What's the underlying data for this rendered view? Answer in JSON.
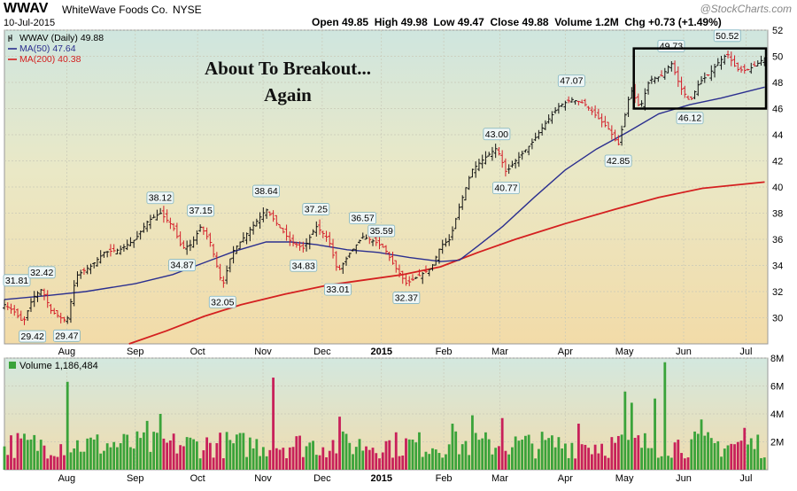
{
  "header": {
    "ticker": "WWAV",
    "company": "WhiteWave Foods Co.",
    "exchange": "NYSE",
    "date": "10-Jul-2015",
    "open_label": "Open",
    "open": "49.85",
    "high_label": "High",
    "high": "49.98",
    "low_label": "Low",
    "low": "49.47",
    "close_label": "Close",
    "close": "49.88",
    "volume_label": "Volume",
    "volume": "1.2M",
    "chg_label": "Chg",
    "chg": "+0.73 (+1.49%)",
    "brand": "@StockCharts.com"
  },
  "annotation": {
    "line1": "About To Breakout...",
    "line2": "Again"
  },
  "chart_data": [
    {
      "type": "line",
      "panel": "price",
      "legend": [
        {
          "label": "WWAV (Daily) 49.88",
          "color": "#000000"
        },
        {
          "label": "MA(50) 47.64",
          "color": "#2b2f8f"
        },
        {
          "label": "MA(200) 40.38",
          "color": "#d42020"
        }
      ],
      "ylim": [
        28,
        52
      ],
      "y_ticks": [
        30,
        32,
        34,
        36,
        38,
        40,
        42,
        44,
        46,
        48,
        50,
        52
      ],
      "x_ticks": [
        "Aug",
        "Sep",
        "Oct",
        "Nov",
        "Dec",
        "2015",
        "Feb",
        "Mar",
        "Apr",
        "May",
        "Jun",
        "Jul"
      ],
      "x_tick_positions": [
        1.0,
        2.1,
        3.1,
        4.15,
        5.1,
        6.05,
        7.05,
        7.95,
        9.0,
        9.95,
        10.9,
        11.9
      ],
      "x_range": [
        0,
        12.25
      ],
      "price_path": [
        [
          0.0,
          31.0
        ],
        [
          0.15,
          30.5
        ],
        [
          0.3,
          29.6
        ],
        [
          0.45,
          31.5
        ],
        [
          0.6,
          32.2
        ],
        [
          0.75,
          30.5
        ],
        [
          0.9,
          30.0
        ],
        [
          1.0,
          29.7
        ],
        [
          1.15,
          33.2
        ],
        [
          1.4,
          34.0
        ],
        [
          1.6,
          35.0
        ],
        [
          1.85,
          35.2
        ],
        [
          2.1,
          36.0
        ],
        [
          2.3,
          37.4
        ],
        [
          2.5,
          38.0
        ],
        [
          2.7,
          37.0
        ],
        [
          2.85,
          35.3
        ],
        [
          3.0,
          35.6
        ],
        [
          3.15,
          37.0
        ],
        [
          3.3,
          35.8
        ],
        [
          3.5,
          32.4
        ],
        [
          3.65,
          35.0
        ],
        [
          3.85,
          36.2
        ],
        [
          4.05,
          37.4
        ],
        [
          4.2,
          38.3
        ],
        [
          4.4,
          37.0
        ],
        [
          4.6,
          35.8
        ],
        [
          4.8,
          35.3
        ],
        [
          5.0,
          37.0
        ],
        [
          5.2,
          36.0
        ],
        [
          5.35,
          33.5
        ],
        [
          5.55,
          35.0
        ],
        [
          5.75,
          36.2
        ],
        [
          5.95,
          35.8
        ],
        [
          6.1,
          35.3
        ],
        [
          6.25,
          34.0
        ],
        [
          6.45,
          32.6
        ],
        [
          6.65,
          33.2
        ],
        [
          6.85,
          33.8
        ],
        [
          7.0,
          35.5
        ],
        [
          7.15,
          36.0
        ],
        [
          7.3,
          38.5
        ],
        [
          7.5,
          41.3
        ],
        [
          7.7,
          42.2
        ],
        [
          7.9,
          43.0
        ],
        [
          8.05,
          41.1
        ],
        [
          8.2,
          42.0
        ],
        [
          8.45,
          43.3
        ],
        [
          8.7,
          45.0
        ],
        [
          8.9,
          46.2
        ],
        [
          9.1,
          46.7
        ],
        [
          9.3,
          46.4
        ],
        [
          9.5,
          45.4
        ],
        [
          9.7,
          44.4
        ],
        [
          9.85,
          43.2
        ],
        [
          9.95,
          45.3
        ],
        [
          10.05,
          47.5
        ],
        [
          10.2,
          46.0
        ],
        [
          10.35,
          48.2
        ],
        [
          10.55,
          48.5
        ],
        [
          10.7,
          49.5
        ],
        [
          10.85,
          47.6
        ],
        [
          11.0,
          46.5
        ],
        [
          11.15,
          48.0
        ],
        [
          11.3,
          48.6
        ],
        [
          11.45,
          49.5
        ],
        [
          11.6,
          50.2
        ],
        [
          11.75,
          49.0
        ],
        [
          11.9,
          48.9
        ],
        [
          12.05,
          49.3
        ],
        [
          12.2,
          49.9
        ]
      ],
      "ma50": [
        [
          0.0,
          31.4
        ],
        [
          0.7,
          31.7
        ],
        [
          1.3,
          32.0
        ],
        [
          2.1,
          32.6
        ],
        [
          2.7,
          33.3
        ],
        [
          3.2,
          34.2
        ],
        [
          3.7,
          35.1
        ],
        [
          4.2,
          35.8
        ],
        [
          4.6,
          35.8
        ],
        [
          5.0,
          35.6
        ],
        [
          5.5,
          35.2
        ],
        [
          6.0,
          35.0
        ],
        [
          6.5,
          34.6
        ],
        [
          7.0,
          34.3
        ],
        [
          7.3,
          34.4
        ],
        [
          7.6,
          35.5
        ],
        [
          8.0,
          37.0
        ],
        [
          8.5,
          39.2
        ],
        [
          9.0,
          41.3
        ],
        [
          9.5,
          42.9
        ],
        [
          10.0,
          44.2
        ],
        [
          10.5,
          45.6
        ],
        [
          11.0,
          46.3
        ],
        [
          11.5,
          46.8
        ],
        [
          12.2,
          47.64
        ]
      ],
      "ma200": [
        [
          2.0,
          27.8
        ],
        [
          2.6,
          29.0
        ],
        [
          3.2,
          30.1
        ],
        [
          3.8,
          31.0
        ],
        [
          4.5,
          31.8
        ],
        [
          5.2,
          32.5
        ],
        [
          5.8,
          32.9
        ],
        [
          6.4,
          33.3
        ],
        [
          7.0,
          33.9
        ],
        [
          7.6,
          35.0
        ],
        [
          8.2,
          36.0
        ],
        [
          9.0,
          37.2
        ],
        [
          9.8,
          38.3
        ],
        [
          10.5,
          39.2
        ],
        [
          11.2,
          39.9
        ],
        [
          12.2,
          40.38
        ]
      ],
      "labels": [
        {
          "t": 0.0,
          "v": 31.81,
          "text": "31.81",
          "pos": "above"
        },
        {
          "t": 0.6,
          "v": 32.42,
          "text": "32.42",
          "pos": "above"
        },
        {
          "t": 0.45,
          "v": 29.42,
          "text": "29.42",
          "pos": "below"
        },
        {
          "t": 1.0,
          "v": 29.47,
          "text": "29.47",
          "pos": "below"
        },
        {
          "t": 2.5,
          "v": 38.12,
          "text": "38.12",
          "pos": "above"
        },
        {
          "t": 2.85,
          "v": 34.87,
          "text": "34.87",
          "pos": "below"
        },
        {
          "t": 3.15,
          "v": 37.15,
          "text": "37.15",
          "pos": "above"
        },
        {
          "t": 3.5,
          "v": 32.05,
          "text": "32.05",
          "pos": "below"
        },
        {
          "t": 4.2,
          "v": 38.64,
          "text": "38.64",
          "pos": "above"
        },
        {
          "t": 4.8,
          "v": 34.83,
          "text": "34.83",
          "pos": "below"
        },
        {
          "t": 5.0,
          "v": 37.25,
          "text": "37.25",
          "pos": "above"
        },
        {
          "t": 5.35,
          "v": 33.01,
          "text": "33.01",
          "pos": "below"
        },
        {
          "t": 5.75,
          "v": 36.57,
          "text": "36.57",
          "pos": "above"
        },
        {
          "t": 6.05,
          "v": 35.59,
          "text": "35.59",
          "pos": "above"
        },
        {
          "t": 6.45,
          "v": 32.37,
          "text": "32.37",
          "pos": "below"
        },
        {
          "t": 7.9,
          "v": 43.0,
          "text": "43.00",
          "pos": "above"
        },
        {
          "t": 8.05,
          "v": 40.77,
          "text": "40.77",
          "pos": "below"
        },
        {
          "t": 9.1,
          "v": 47.07,
          "text": "47.07",
          "pos": "above"
        },
        {
          "t": 9.85,
          "v": 42.85,
          "text": "42.85",
          "pos": "below"
        },
        {
          "t": 10.7,
          "v": 49.73,
          "text": "49.73",
          "pos": "above"
        },
        {
          "t": 11.0,
          "v": 46.12,
          "text": "46.12",
          "pos": "below"
        },
        {
          "t": 11.6,
          "v": 50.52,
          "text": "50.52",
          "pos": "above"
        }
      ],
      "box": {
        "t0": 10.1,
        "t1": 12.25,
        "v0": 46.0,
        "v1": 50.6
      }
    },
    {
      "type": "bar",
      "panel": "volume",
      "legend": [
        {
          "label": "Volume 1,186,484",
          "color": "#000000"
        }
      ],
      "ylim": [
        0,
        8
      ],
      "y_ticks": [
        2,
        4,
        6,
        8
      ],
      "y_tick_labels": [
        "2M",
        "4M",
        "6M",
        "8M"
      ],
      "unit": "M",
      "spikes": [
        {
          "t": 1.0,
          "v": 6.3
        },
        {
          "t": 2.3,
          "v": 3.5
        },
        {
          "t": 2.5,
          "v": 4.0
        },
        {
          "t": 4.3,
          "v": 6.6
        },
        {
          "t": 5.4,
          "v": 3.8
        },
        {
          "t": 7.2,
          "v": 3.3
        },
        {
          "t": 7.5,
          "v": 3.9
        },
        {
          "t": 8.0,
          "v": 3.7
        },
        {
          "t": 9.2,
          "v": 3.3
        },
        {
          "t": 9.95,
          "v": 5.6
        },
        {
          "t": 10.05,
          "v": 4.8
        },
        {
          "t": 10.45,
          "v": 5.1
        },
        {
          "t": 10.6,
          "v": 7.7
        },
        {
          "t": 11.2,
          "v": 3.6
        },
        {
          "t": 11.9,
          "v": 3.0
        }
      ]
    }
  ]
}
